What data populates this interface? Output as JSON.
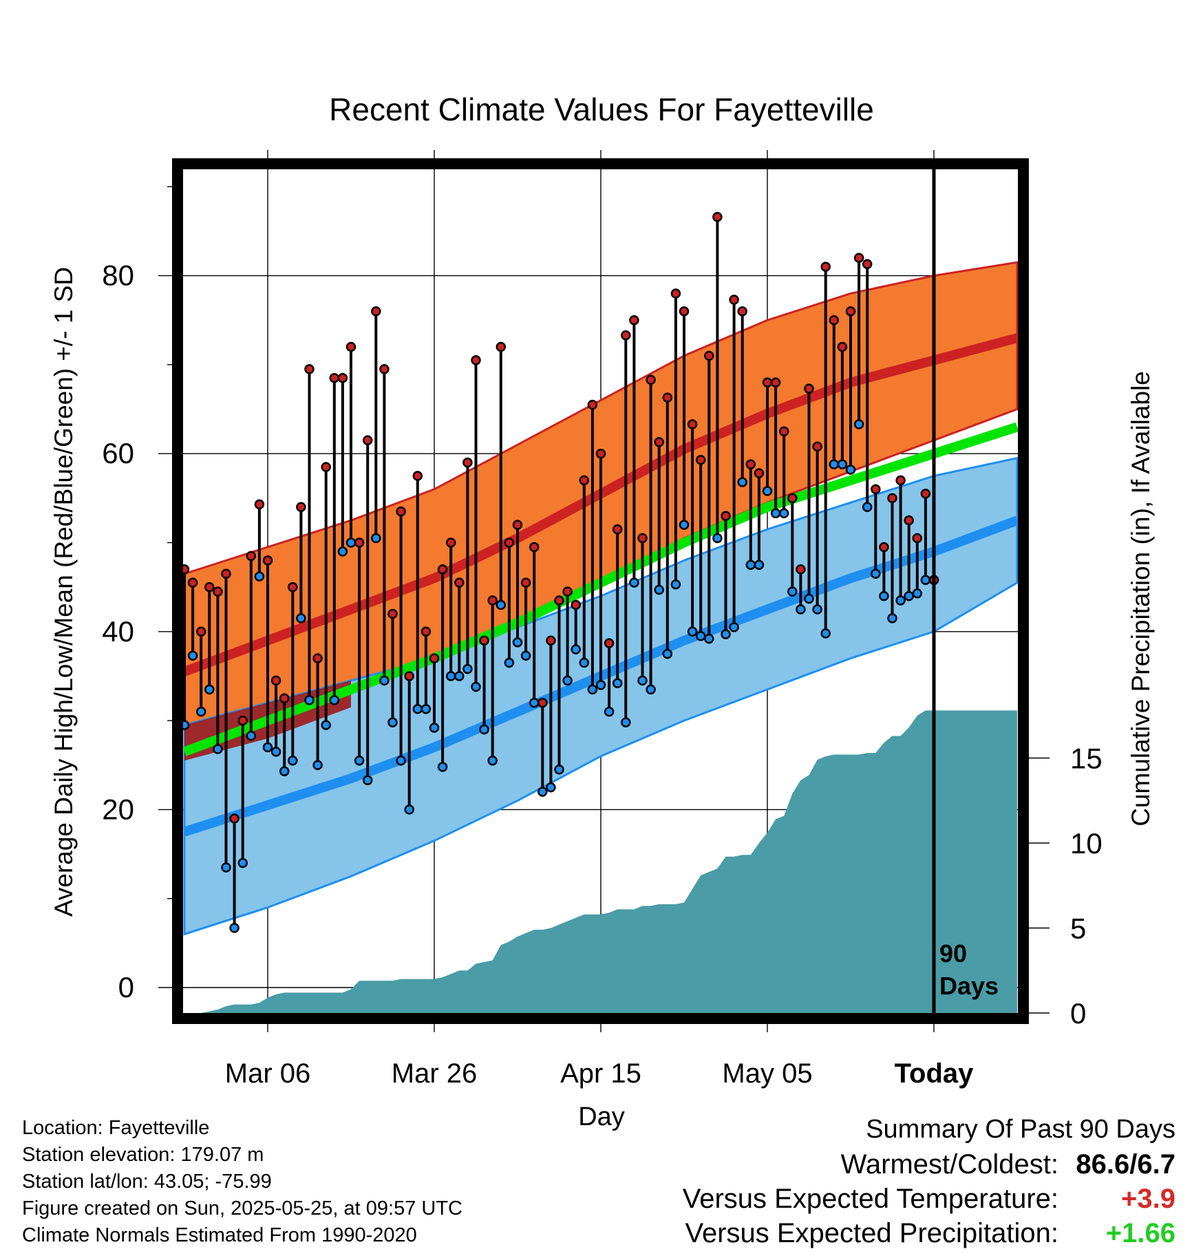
{
  "chart_data": {
    "type": "line",
    "title": "Recent Climate Values For Fayetteville",
    "xlabel": "Day",
    "ylabel": "Average Daily High/Low/Mean (Red/Blue/Green) +/- 1 SD",
    "y2label": "Cumulative Precipitation (in), If Available",
    "ylim": [
      -3,
      92
    ],
    "y2lim": [
      0,
      47.5
    ],
    "y_ticks": [
      "0",
      "20",
      "40",
      "60",
      "80"
    ],
    "y_tick_values": [
      0,
      20,
      40,
      60,
      80
    ],
    "y2_ticks": [
      "0",
      "5",
      "10",
      "15"
    ],
    "y2_tick_values": [
      0,
      5,
      10,
      15
    ],
    "x_ticks": [
      "Mar 06",
      "Mar 26",
      "Apr 15",
      "May 05",
      "Today"
    ],
    "x_tick_days": [
      10,
      30,
      50,
      70,
      90
    ],
    "xlim": [
      0,
      100
    ],
    "today_day": 90,
    "today_label_1": "90",
    "today_label_2": "Days",
    "grid": true,
    "colors": {
      "high": "#cc2222",
      "low": "#1e8ff0",
      "mean": "#00e400",
      "high_band": "#f47a30",
      "low_band": "#86c4ea",
      "precip": "#4a9ca6"
    },
    "normals": {
      "day": [
        0,
        10,
        20,
        30,
        40,
        50,
        60,
        70,
        80,
        90,
        100
      ],
      "high_mean": [
        35.5,
        39,
        42.5,
        46,
        50.5,
        55.5,
        60.5,
        64.5,
        68,
        70.5,
        73
      ],
      "high_upper": [
        46.5,
        49.5,
        52.5,
        56,
        61,
        66,
        71,
        75,
        78,
        80,
        81.5
      ],
      "high_lower": [
        25.5,
        28,
        31.5,
        36,
        40.5,
        45.5,
        50.5,
        54.5,
        58,
        61.5,
        65
      ],
      "low_mean": [
        17.5,
        20.5,
        23.5,
        27,
        31,
        35,
        39,
        42.5,
        46,
        49,
        52.5
      ],
      "low_upper": [
        29.5,
        32,
        34.5,
        37,
        40.5,
        44,
        48,
        51.5,
        54.5,
        57.5,
        59.5
      ],
      "low_lower": [
        6,
        9,
        12.5,
        16.5,
        21,
        26,
        30,
        33.5,
        37,
        40,
        45.5
      ],
      "avg_mean": [
        26.5,
        30,
        33.5,
        37,
        41,
        45.5,
        50,
        54,
        57,
        60,
        63
      ]
    },
    "series": [
      {
        "name": "High",
        "x": [
          0,
          1,
          2,
          3,
          4,
          5,
          6,
          7,
          8,
          9,
          10,
          11,
          12,
          13,
          14,
          15,
          16,
          17,
          18,
          19,
          20,
          21,
          22,
          23,
          24,
          25,
          26,
          27,
          28,
          29,
          30,
          31,
          32,
          33,
          34,
          35,
          36,
          37,
          38,
          39,
          40,
          41,
          42,
          43,
          44,
          45,
          46,
          47,
          48,
          49,
          50,
          51,
          52,
          53,
          54,
          55,
          56,
          57,
          58,
          59,
          60,
          61,
          62,
          63,
          64,
          65,
          66,
          67,
          68,
          69,
          70,
          71,
          72,
          73,
          74,
          75,
          76,
          77,
          78,
          79,
          80,
          81,
          82,
          83,
          84,
          85,
          86,
          87,
          88,
          89,
          90
        ],
        "values": [
          47,
          45.5,
          40,
          45,
          44.5,
          46.5,
          19,
          30,
          48.5,
          54.3,
          48,
          34.5,
          32.5,
          45,
          54,
          69.5,
          37,
          58.5,
          68.5,
          68.5,
          72,
          50,
          61.5,
          76,
          69.5,
          42,
          53.5,
          35,
          57.5,
          40,
          37,
          47,
          50,
          45.5,
          59,
          70.5,
          39,
          43.5,
          72,
          50,
          52,
          45.5,
          49.5,
          32,
          39,
          43.5,
          44.5,
          43,
          57,
          65.5,
          60,
          38.7,
          51.5,
          73.3,
          75,
          50.5,
          68.3,
          61.3,
          66.3,
          78,
          76,
          63.3,
          59.3,
          71,
          86.6,
          53,
          77.3,
          76,
          58.8,
          57.8,
          68,
          68,
          62.5,
          55,
          47,
          67.3,
          60.8,
          81,
          75,
          72,
          76,
          82,
          81.3,
          56,
          49.5,
          55,
          57,
          52.5,
          50.5,
          55.5,
          45.8
        ]
      },
      {
        "name": "Low",
        "x": [
          0,
          1,
          2,
          3,
          4,
          5,
          6,
          7,
          8,
          9,
          10,
          11,
          12,
          13,
          14,
          15,
          16,
          17,
          18,
          19,
          20,
          21,
          22,
          23,
          24,
          25,
          26,
          27,
          28,
          29,
          30,
          31,
          32,
          33,
          34,
          35,
          36,
          37,
          38,
          39,
          40,
          41,
          42,
          43,
          44,
          45,
          46,
          47,
          48,
          49,
          50,
          51,
          52,
          53,
          54,
          55,
          56,
          57,
          58,
          59,
          60,
          61,
          62,
          63,
          64,
          65,
          66,
          67,
          68,
          69,
          70,
          71,
          72,
          73,
          74,
          75,
          76,
          77,
          78,
          79,
          80,
          81,
          82,
          83,
          84,
          85,
          86,
          87,
          88,
          89,
          90
        ],
        "values": [
          29.5,
          37.3,
          31,
          33.5,
          26.8,
          13.5,
          6.7,
          14,
          28.3,
          46.2,
          27,
          26.5,
          24.3,
          25.5,
          41.5,
          32.3,
          25,
          29.5,
          32.3,
          49,
          50,
          25.5,
          23.3,
          50.5,
          34.5,
          29.8,
          25.5,
          20,
          31.3,
          31.3,
          29.2,
          24.8,
          35,
          35,
          35.8,
          33.8,
          29,
          25.5,
          43,
          36.5,
          38.8,
          37.3,
          32,
          22,
          22.5,
          24.5,
          34.5,
          38,
          36.5,
          33.5,
          34,
          31,
          34.2,
          29.8,
          45.5,
          34.5,
          33.5,
          44.7,
          37.5,
          45.3,
          52,
          40,
          39.5,
          39.2,
          50.5,
          39.7,
          40.5,
          56.8,
          47.5,
          47.5,
          55.8,
          53.3,
          53.3,
          44.5,
          42.5,
          43.7,
          42.5,
          39.8,
          58.8,
          58.8,
          58.2,
          63.3,
          54,
          46.5,
          44,
          41.5,
          43.5,
          44,
          44.3,
          45.8,
          45.8
        ]
      },
      {
        "name": "Precip",
        "x": [
          0,
          2,
          4,
          5,
          6,
          8,
          9,
          10,
          11,
          12,
          13,
          15,
          17,
          19,
          20,
          21,
          22,
          23,
          24,
          25,
          26,
          27,
          28,
          29,
          30,
          31,
          32,
          33,
          34,
          35,
          36,
          37,
          38,
          39,
          40,
          41,
          42,
          43,
          44,
          45,
          46,
          47,
          48,
          49,
          50,
          51,
          52,
          53,
          54,
          55,
          56,
          57,
          58,
          59,
          60,
          61,
          62,
          63,
          64,
          65,
          66,
          67,
          68,
          69,
          70,
          71,
          72,
          73,
          74,
          75,
          76,
          77,
          78,
          79,
          80,
          81,
          82,
          83,
          84,
          85,
          86,
          87,
          88,
          89,
          90,
          100
        ],
        "values": [
          0,
          0,
          0.2,
          0.4,
          0.5,
          0.5,
          0.6,
          0.9,
          1.1,
          1.2,
          1.2,
          1.2,
          1.2,
          1.2,
          1.4,
          1.9,
          1.9,
          1.9,
          1.9,
          1.9,
          2.0,
          2.0,
          2.0,
          2.0,
          2.0,
          2.1,
          2.3,
          2.5,
          2.5,
          2.9,
          3.0,
          3.1,
          4.0,
          4.2,
          4.5,
          4.7,
          4.9,
          4.9,
          5.0,
          5.2,
          5.4,
          5.6,
          5.8,
          5.8,
          5.8,
          5.9,
          6.1,
          6.1,
          6.1,
          6.3,
          6.3,
          6.4,
          6.4,
          6.4,
          6.5,
          7.3,
          8.1,
          8.3,
          8.5,
          9.2,
          9.2,
          9.3,
          9.3,
          10.0,
          10.6,
          11.4,
          11.6,
          12.9,
          13.7,
          14.0,
          14.9,
          15.1,
          15.2,
          15.2,
          15.2,
          15.2,
          15.3,
          15.3,
          15.9,
          16.3,
          16.3,
          16.8,
          17.5,
          17.8,
          17.8,
          17.8
        ]
      }
    ]
  },
  "footer": {
    "location": "Location: Fayetteville",
    "elevation": "Station elevation: 179.07 m",
    "latlon": "Station lat/lon: 43.05; -75.99",
    "created": "Figure created on Sun, 2025-05-25, at 09:57 UTC",
    "normals": "Climate Normals Estimated From 1990-2020"
  },
  "summary": {
    "heading": "Summary Of Past 90 Days",
    "warmest_label": "Warmest/Coldest:",
    "warmest_value": "86.6/6.7",
    "temp_label": "Versus Expected Temperature:",
    "temp_value": "+3.9",
    "temp_color": "#d42a2a",
    "precip_label": "Versus Expected Precipitation:",
    "precip_value": "+1.66",
    "precip_color": "#22cc22"
  }
}
